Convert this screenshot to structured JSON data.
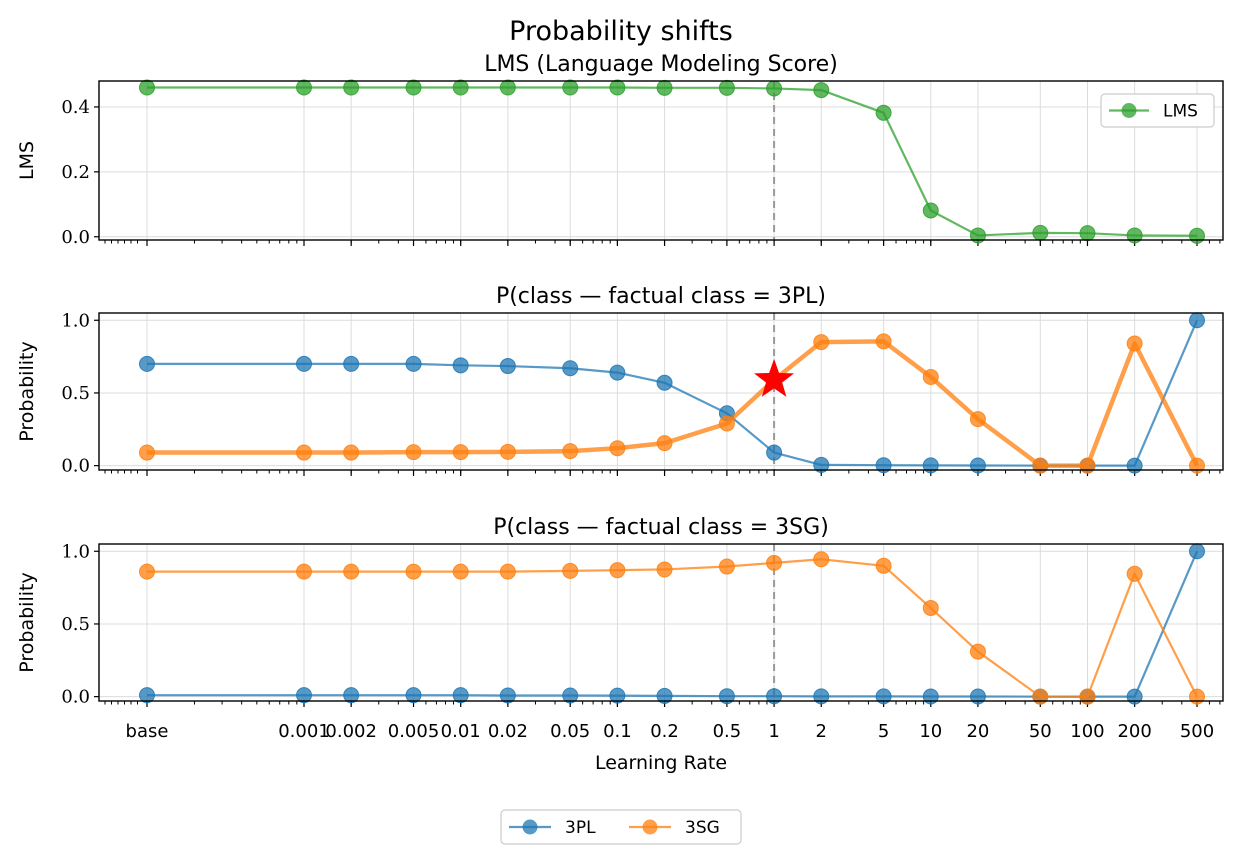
{
  "figure": {
    "suptitle": "Probability shifts",
    "xlabel": "Learning Rate",
    "legend_bottom": [
      {
        "label": "3PL",
        "color": "#1f77b4"
      },
      {
        "label": "3SG",
        "color": "#ff7f0e"
      }
    ]
  },
  "chart_data": [
    {
      "type": "line",
      "title": "LMS (Language Modeling Score)",
      "ylabel": "LMS",
      "ylim": [
        -0.01,
        0.48
      ],
      "yticks": [
        "0.0",
        "0.2",
        "0.4"
      ],
      "ytick_values": [
        0.0,
        0.2,
        0.4
      ],
      "grid": true,
      "legend": {
        "position": "upper right",
        "entries": [
          "LMS"
        ]
      },
      "x": [
        "base",
        "0.001",
        "0.002",
        "0.005",
        "0.01",
        "0.02",
        "0.05",
        "0.1",
        "0.2",
        "0.5",
        "1",
        "2",
        "5",
        "10",
        "20",
        "50",
        "100",
        "200",
        "500"
      ],
      "vline_at": "1",
      "series": [
        {
          "name": "LMS",
          "color": "#2ca02c",
          "values": [
            0.46,
            0.46,
            0.46,
            0.46,
            0.46,
            0.46,
            0.46,
            0.46,
            0.459,
            0.459,
            0.457,
            0.452,
            0.382,
            0.081,
            0.004,
            0.012,
            0.011,
            0.004,
            0.003
          ]
        }
      ]
    },
    {
      "type": "line",
      "title": "P(class — factual class = 3PL)",
      "ylabel": "Probability",
      "ylim": [
        -0.03,
        1.05
      ],
      "yticks": [
        "0.0",
        "0.5",
        "1.0"
      ],
      "ytick_values": [
        0.0,
        0.5,
        1.0
      ],
      "grid": true,
      "x": [
        "base",
        "0.001",
        "0.002",
        "0.005",
        "0.01",
        "0.02",
        "0.05",
        "0.1",
        "0.2",
        "0.5",
        "1",
        "2",
        "5",
        "10",
        "20",
        "50",
        "100",
        "200",
        "500"
      ],
      "vline_at": "1",
      "star": {
        "x": "1",
        "y": 0.59,
        "color": "#ff0000"
      },
      "series": [
        {
          "name": "3PL",
          "color": "#1f77b4",
          "width": 2.2,
          "values": [
            0.7,
            0.7,
            0.7,
            0.7,
            0.69,
            0.685,
            0.67,
            0.64,
            0.57,
            0.36,
            0.09,
            0.005,
            0.003,
            0.002,
            0.001,
            0.0,
            0.0,
            0.0,
            1.0
          ]
        },
        {
          "name": "3SG",
          "color": "#ff7f0e",
          "width": 4.5,
          "values": [
            0.09,
            0.09,
            0.09,
            0.093,
            0.093,
            0.095,
            0.1,
            0.12,
            0.155,
            0.29,
            0.59,
            0.85,
            0.855,
            0.61,
            0.32,
            0.0,
            0.0,
            0.84,
            0.0
          ]
        }
      ]
    },
    {
      "type": "line",
      "title": "P(class — factual class = 3SG)",
      "ylabel": "Probability",
      "ylim": [
        -0.03,
        1.05
      ],
      "yticks": [
        "0.0",
        "0.5",
        "1.0"
      ],
      "ytick_values": [
        0.0,
        0.5,
        1.0
      ],
      "grid": true,
      "x": [
        "base",
        "0.001",
        "0.002",
        "0.005",
        "0.01",
        "0.02",
        "0.05",
        "0.1",
        "0.2",
        "0.5",
        "1",
        "2",
        "5",
        "10",
        "20",
        "50",
        "100",
        "200",
        "500"
      ],
      "vline_at": "1",
      "series": [
        {
          "name": "3PL",
          "color": "#1f77b4",
          "width": 2.2,
          "values": [
            0.01,
            0.01,
            0.01,
            0.01,
            0.01,
            0.008,
            0.008,
            0.007,
            0.005,
            0.003,
            0.003,
            0.002,
            0.002,
            0.001,
            0.001,
            0.0,
            0.0,
            0.0,
            1.0
          ]
        },
        {
          "name": "3SG",
          "color": "#ff7f0e",
          "width": 2.2,
          "values": [
            0.86,
            0.86,
            0.86,
            0.86,
            0.86,
            0.86,
            0.865,
            0.87,
            0.875,
            0.895,
            0.92,
            0.945,
            0.9,
            0.61,
            0.31,
            0.0,
            0.0,
            0.845,
            0.0
          ]
        }
      ]
    }
  ]
}
